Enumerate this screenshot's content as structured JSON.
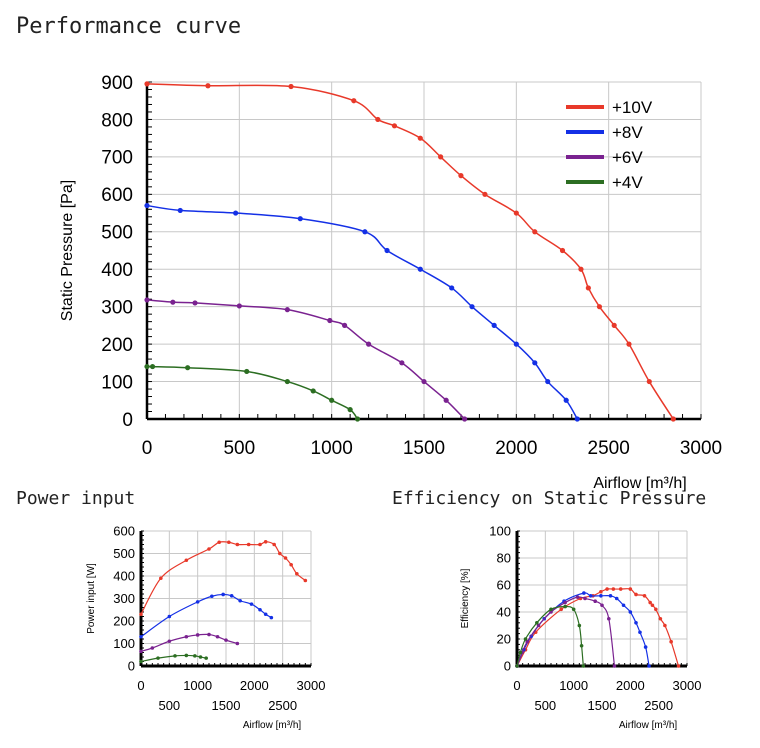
{
  "titles": {
    "main": "Performance curve",
    "power": "Power input",
    "efficiency": "Efficiency on Static Pressure"
  },
  "colors": {
    "+10V": "#e8392a",
    "+8V": "#1430e6",
    "+6V": "#7a2290",
    "+4V": "#2c6e22",
    "legend_text": "#e23a8a"
  },
  "chart_data": [
    {
      "type": "line",
      "xlabel": "Airflow [m³/h]",
      "ylabel": "Static Pressure [Pa]",
      "xlim": [
        0,
        3000
      ],
      "ylim": [
        0,
        900
      ],
      "xticks": [
        0,
        500,
        1000,
        1500,
        2000,
        2500,
        3000
      ],
      "yticks": [
        0,
        100,
        200,
        300,
        400,
        500,
        600,
        700,
        800,
        900
      ],
      "grid": true,
      "legend_position": "top-right",
      "series": [
        {
          "name": "+10V",
          "color": "#e8392a",
          "points": [
            [
              0,
              895
            ],
            [
              330,
              890
            ],
            [
              780,
              888
            ],
            [
              1120,
              850
            ],
            [
              1250,
              800
            ],
            [
              1340,
              783
            ],
            [
              1480,
              750
            ],
            [
              1590,
              700
            ],
            [
              1700,
              650
            ],
            [
              1830,
              600
            ],
            [
              2000,
              550
            ],
            [
              2100,
              500
            ],
            [
              2250,
              450
            ],
            [
              2350,
              400
            ],
            [
              2390,
              350
            ],
            [
              2450,
              300
            ],
            [
              2530,
              250
            ],
            [
              2610,
              200
            ],
            [
              2720,
              100
            ],
            [
              2850,
              0
            ]
          ]
        },
        {
          "name": "+8V",
          "color": "#1430e6",
          "points": [
            [
              0,
              570
            ],
            [
              180,
              557
            ],
            [
              480,
              550
            ],
            [
              830,
              535
            ],
            [
              1180,
              500
            ],
            [
              1300,
              450
            ],
            [
              1480,
              400
            ],
            [
              1650,
              350
            ],
            [
              1760,
              300
            ],
            [
              1880,
              250
            ],
            [
              2000,
              200
            ],
            [
              2100,
              150
            ],
            [
              2170,
              100
            ],
            [
              2270,
              50
            ],
            [
              2330,
              0
            ]
          ]
        },
        {
          "name": "+6V",
          "color": "#7a2290",
          "points": [
            [
              0,
              318
            ],
            [
              140,
              312
            ],
            [
              260,
              310
            ],
            [
              500,
              302
            ],
            [
              760,
              292
            ],
            [
              990,
              263
            ],
            [
              1070,
              250
            ],
            [
              1200,
              200
            ],
            [
              1380,
              150
            ],
            [
              1500,
              100
            ],
            [
              1620,
              50
            ],
            [
              1720,
              0
            ]
          ]
        },
        {
          "name": "+4V",
          "color": "#2c6e22",
          "points": [
            [
              0,
              140
            ],
            [
              30,
              140
            ],
            [
              220,
              137
            ],
            [
              540,
              127
            ],
            [
              760,
              100
            ],
            [
              900,
              75
            ],
            [
              1000,
              50
            ],
            [
              1100,
              25
            ],
            [
              1140,
              0
            ]
          ]
        }
      ]
    },
    {
      "type": "line",
      "xlabel": "Airflow [m³/h]",
      "ylabel": "Power input [W]",
      "xlim": [
        0,
        3000
      ],
      "ylim": [
        0,
        600
      ],
      "xticks_upper": [
        0,
        1000,
        2000,
        3000
      ],
      "xticks_lower": [
        500,
        1500,
        2500
      ],
      "yticks": [
        0,
        100,
        200,
        300,
        400,
        500,
        600
      ],
      "grid": true,
      "series": [
        {
          "name": "+10V",
          "color": "#e8392a",
          "points": [
            [
              0,
              230
            ],
            [
              350,
              390
            ],
            [
              800,
              470
            ],
            [
              1200,
              520
            ],
            [
              1380,
              550
            ],
            [
              1550,
              550
            ],
            [
              1700,
              540
            ],
            [
              1900,
              540
            ],
            [
              2100,
              540
            ],
            [
              2200,
              552
            ],
            [
              2350,
              540
            ],
            [
              2450,
              500
            ],
            [
              2550,
              480
            ],
            [
              2650,
              450
            ],
            [
              2750,
              410
            ],
            [
              2900,
              380
            ]
          ]
        },
        {
          "name": "+8V",
          "color": "#1430e6",
          "points": [
            [
              0,
              130
            ],
            [
              500,
              220
            ],
            [
              1000,
              285
            ],
            [
              1250,
              310
            ],
            [
              1450,
              318
            ],
            [
              1600,
              312
            ],
            [
              1750,
              290
            ],
            [
              1950,
              275
            ],
            [
              2100,
              250
            ],
            [
              2200,
              230
            ],
            [
              2300,
              215
            ]
          ]
        },
        {
          "name": "+6V",
          "color": "#7a2290",
          "points": [
            [
              0,
              65
            ],
            [
              200,
              80
            ],
            [
              500,
              110
            ],
            [
              800,
              130
            ],
            [
              1000,
              138
            ],
            [
              1200,
              140
            ],
            [
              1350,
              130
            ],
            [
              1500,
              115
            ],
            [
              1700,
              100
            ]
          ]
        },
        {
          "name": "+4V",
          "color": "#2c6e22",
          "points": [
            [
              0,
              20
            ],
            [
              300,
              35
            ],
            [
              600,
              45
            ],
            [
              800,
              47
            ],
            [
              950,
              45
            ],
            [
              1050,
              40
            ],
            [
              1150,
              35
            ]
          ]
        }
      ]
    },
    {
      "type": "line",
      "xlabel": "Airflow [m³/h]",
      "ylabel": "Efficiency [%]",
      "xlim": [
        0,
        3000
      ],
      "ylim": [
        0,
        100
      ],
      "xticks_upper": [
        0,
        1000,
        2000,
        3000
      ],
      "xticks_lower": [
        500,
        1500,
        2500
      ],
      "yticks": [
        0,
        20,
        40,
        60,
        80,
        100
      ],
      "grid": true,
      "series": [
        {
          "name": "+10V",
          "color": "#e8392a",
          "points": [
            [
              0,
              0
            ],
            [
              150,
              12
            ],
            [
              330,
              25
            ],
            [
              780,
              42
            ],
            [
              1120,
              50
            ],
            [
              1340,
              52
            ],
            [
              1480,
              55
            ],
            [
              1590,
              57
            ],
            [
              1700,
              57
            ],
            [
              1830,
              57
            ],
            [
              2000,
              57
            ],
            [
              2100,
              53
            ],
            [
              2250,
              52
            ],
            [
              2350,
              47
            ],
            [
              2390,
              45
            ],
            [
              2450,
              42
            ],
            [
              2530,
              35
            ],
            [
              2610,
              30
            ],
            [
              2720,
              18
            ],
            [
              2850,
              0
            ]
          ]
        },
        {
          "name": "+8V",
          "color": "#1430e6",
          "points": [
            [
              0,
              0
            ],
            [
              120,
              12
            ],
            [
              250,
              22
            ],
            [
              480,
              35
            ],
            [
              830,
              48
            ],
            [
              1180,
              54
            ],
            [
              1300,
              52
            ],
            [
              1480,
              52
            ],
            [
              1650,
              52
            ],
            [
              1760,
              50
            ],
            [
              1880,
              45
            ],
            [
              2000,
              40
            ],
            [
              2100,
              32
            ],
            [
              2170,
              25
            ],
            [
              2270,
              14
            ],
            [
              2330,
              0
            ]
          ]
        },
        {
          "name": "+6V",
          "color": "#7a2290",
          "points": [
            [
              0,
              0
            ],
            [
              90,
              10
            ],
            [
              180,
              18
            ],
            [
              380,
              30
            ],
            [
              600,
              40
            ],
            [
              850,
              47
            ],
            [
              1070,
              51
            ],
            [
              1200,
              50
            ],
            [
              1380,
              48
            ],
            [
              1500,
              45
            ],
            [
              1620,
              35
            ],
            [
              1720,
              0
            ]
          ]
        },
        {
          "name": "+4V",
          "color": "#2c6e22",
          "points": [
            [
              0,
              0
            ],
            [
              60,
              10
            ],
            [
              150,
              20
            ],
            [
              350,
              32
            ],
            [
              600,
              42
            ],
            [
              850,
              44
            ],
            [
              1000,
              42
            ],
            [
              1100,
              30
            ],
            [
              1140,
              15
            ],
            [
              1170,
              0
            ]
          ]
        }
      ]
    }
  ]
}
